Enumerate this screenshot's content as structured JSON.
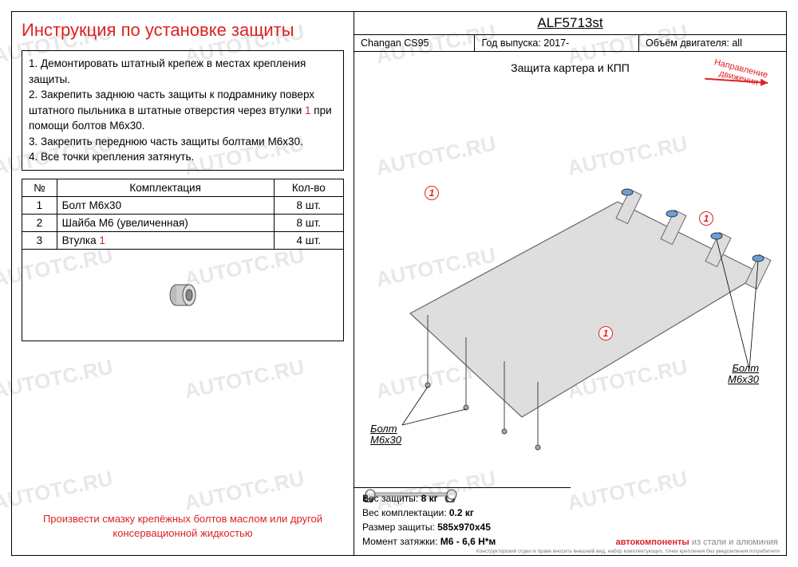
{
  "watermark_text": "AUTOTC.RU",
  "title": "Инструкция по установке защиты",
  "instructions_html": "1. Демонтировать штатный крепеж в местах крепления защиты.|2. Закрепить заднюю часть защиты к подрамнику поверх штатного пыльника в штатные отверстия через втулки <span class='red'>1</span> при помощи болтов М6х30.|3. Закрепить переднюю часть защиты болтами М6х30.|4. Все точки крепления затянуть.",
  "table": {
    "headers": [
      "№",
      "Комплектация",
      "Кол-во"
    ],
    "rows": [
      [
        "1",
        "Болт М6х30",
        "8 шт."
      ],
      [
        "2",
        "Шайба М6 (увеличенная)",
        "8 шт."
      ],
      [
        "3",
        "Втулка <span class='red'>1</span>",
        "4 шт."
      ]
    ]
  },
  "footer_note": "Произвести смазку крепёжных болтов маслом или другой консервационной жидкостью",
  "header": {
    "part_no": "ALF5713st",
    "model": "Changan CS95",
    "year_label": "Год выпуска: 2017-",
    "engine_label": "Объём двигателя: all"
  },
  "subtitle": "Защита картера и КПП",
  "direction_label": "Направление\nдвижения",
  "bolt_label": "Болт\nМ6х30",
  "specs": {
    "weight": "Вес защиты:  8 кг",
    "kit_weight": "Вес комплектации:  0.2 кг",
    "size": "Размер защиты:  585х970х45",
    "torque": "Момент затяжки:   М6 - 6,6 Н*м"
  },
  "brand": {
    "red": "автокомпоненты",
    "grey": " из стали и алюминия"
  },
  "fineprint": "Конструкторский отдел в праве вносить внешний вид, набор комплектующих, точки крепления без уведомления потребителя",
  "colors": {
    "red": "#d22",
    "plate_fill": "#dedede",
    "plate_stroke": "#666"
  }
}
